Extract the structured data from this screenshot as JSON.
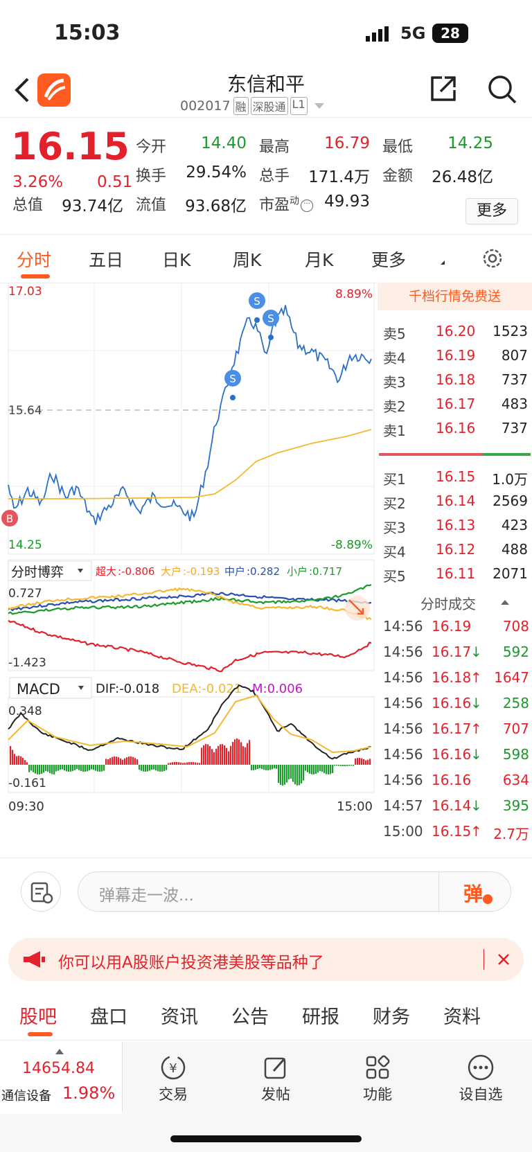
{
  "status": {
    "time": "15:03",
    "net": "5G",
    "battery": "28"
  },
  "header": {
    "title": "东信和平",
    "code": "002017",
    "tags": [
      "融",
      "深股通",
      "L1"
    ]
  },
  "quote": {
    "price": "16.15",
    "pct": "3.26%",
    "chg": "0.51",
    "stats": [
      {
        "l": "今开",
        "v": "14.40",
        "c": "g"
      },
      {
        "l": "最高",
        "v": "16.79",
        "c": "r"
      },
      {
        "l": "最低",
        "v": "14.25",
        "c": "g"
      },
      {
        "l": "换手",
        "v": "29.54%",
        "c": "k"
      },
      {
        "l": "总手",
        "v": "171.4万",
        "c": "k"
      },
      {
        "l": "金额",
        "v": "26.48亿",
        "c": "k"
      },
      {
        "l": "总值",
        "v": "93.74亿",
        "c": "k"
      },
      {
        "l": "流值",
        "v": "93.68亿",
        "c": "k"
      },
      {
        "l": "市盈",
        "sup": "动",
        "v": "49.93",
        "c": "k"
      }
    ],
    "more": "更多"
  },
  "tabs": [
    "分时",
    "五日",
    "日K",
    "周K",
    "月K",
    "更多"
  ],
  "chart": {
    "ymax": "17.03",
    "ymin": "14.25",
    "pmax": "8.89%",
    "pmin": "-8.89%",
    "mid": "15.64",
    "boyi": {
      "label": "分时博弈",
      "items": [
        {
          "k": "超大",
          "v": ":-0.806",
          "c": "#e4212b"
        },
        {
          "k": "大户",
          "v": ":-0.193",
          "c": "#f5a623"
        },
        {
          "k": "中户",
          "v": ":0.282",
          "c": "#2a4fb0"
        },
        {
          "k": "小户",
          "v": ":0.717",
          "c": "#1a9a2a"
        }
      ],
      "top": "0.727",
      "bot": "-1.423"
    },
    "macd": {
      "label": "MACD",
      "dif": "DIF:-0.018",
      "dea": "DEA:-0.021",
      "m": "M:0.006",
      "top": "0.348",
      "bot": "-0.161"
    },
    "tstart": "09:30",
    "tend": "15:00",
    "marks": [
      "S",
      "S",
      "S",
      "B"
    ]
  },
  "book": {
    "promo": "千档行情免费送",
    "asks": [
      {
        "l": "卖5",
        "p": "16.20",
        "q": "1523"
      },
      {
        "l": "卖4",
        "p": "16.19",
        "q": "807"
      },
      {
        "l": "卖3",
        "p": "16.18",
        "q": "737"
      },
      {
        "l": "卖2",
        "p": "16.17",
        "q": "483"
      },
      {
        "l": "卖1",
        "p": "16.16",
        "q": "737"
      }
    ],
    "bids": [
      {
        "l": "买1",
        "p": "16.15",
        "q": "1.0万"
      },
      {
        "l": "买2",
        "p": "16.14",
        "q": "2569"
      },
      {
        "l": "买3",
        "p": "16.13",
        "q": "423"
      },
      {
        "l": "买4",
        "p": "16.12",
        "q": "488"
      },
      {
        "l": "买5",
        "p": "16.11",
        "q": "2071"
      }
    ]
  },
  "ticks": {
    "title": "分时成交",
    "rows": [
      {
        "t": "14:56",
        "p": "16.19",
        "a": "",
        "q": "708",
        "c": "r"
      },
      {
        "t": "14:56",
        "p": "16.17",
        "a": "↓",
        "q": "592",
        "c": "g"
      },
      {
        "t": "14:56",
        "p": "16.18",
        "a": "↑",
        "q": "1647",
        "c": "r"
      },
      {
        "t": "14:56",
        "p": "16.16",
        "a": "↓",
        "q": "258",
        "c": "g"
      },
      {
        "t": "14:56",
        "p": "16.17",
        "a": "↑",
        "q": "707",
        "c": "r"
      },
      {
        "t": "14:56",
        "p": "16.16",
        "a": "↓",
        "q": "598",
        "c": "g"
      },
      {
        "t": "14:56",
        "p": "16.16",
        "a": "",
        "q": "634",
        "c": "r"
      },
      {
        "t": "14:57",
        "p": "16.14",
        "a": "↓",
        "q": "395",
        "c": "g"
      },
      {
        "t": "15:00",
        "p": "16.15",
        "a": "↑",
        "q": "2.7万",
        "c": "r"
      }
    ]
  },
  "comment": {
    "placeholder": "弹幕走一波...",
    "btn": "弹"
  },
  "banner": {
    "text": "你可以用A股账户投资港美股等品种了"
  },
  "subtabs": [
    "股吧",
    "盘口",
    "资讯",
    "公告",
    "研报",
    "财务",
    "资料"
  ],
  "bottom": {
    "index": "14654.84",
    "sector": "通信设备",
    "sectorPct": "1.98%",
    "items": [
      "交易",
      "发帖",
      "功能",
      "设自选"
    ]
  }
}
